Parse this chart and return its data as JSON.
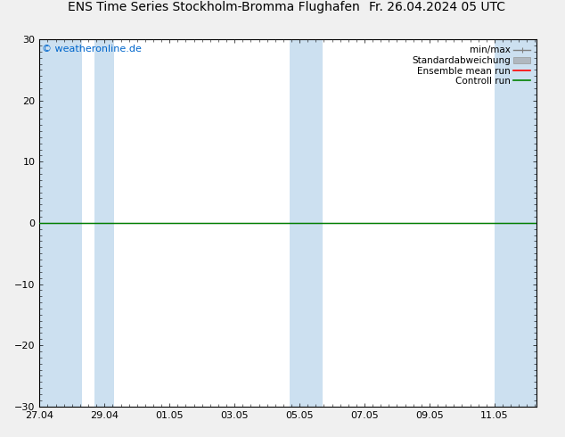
{
  "title_left": "ENS Time Series Stockholm-Bromma Flughafen",
  "title_right": "Fr. 26.04.2024 05 UTC",
  "title_fontsize": 10,
  "ylim": [
    -30,
    30
  ],
  "yticks": [
    -30,
    -20,
    -10,
    0,
    10,
    20,
    30
  ],
  "xlabel_dates": [
    "27.04",
    "29.04",
    "01.05",
    "03.05",
    "05.05",
    "07.05",
    "09.05",
    "11.05"
  ],
  "x_positions": [
    0,
    2,
    4,
    6,
    8,
    10,
    12,
    14
  ],
  "xlim": [
    0,
    15.3
  ],
  "watermark": "© weatheronline.de",
  "watermark_color": "#0066cc",
  "watermark_fontsize": 8,
  "background_color": "#f0f0f0",
  "plot_bg_color": "#ffffff",
  "shaded_bands_x": [
    [
      0.0,
      1.3
    ],
    [
      1.7,
      2.3
    ],
    [
      7.7,
      8.7
    ],
    [
      14.0,
      15.3
    ]
  ],
  "shaded_color": "#cce0f0",
  "zero_line_color": "#000000",
  "control_run_color": "#008000",
  "ensemble_mean_color": "#ff0000",
  "legend_labels": [
    "min/max",
    "Standardabweichung",
    "Ensemble mean run",
    "Controll run"
  ],
  "legend_line_colors": [
    "#808080",
    "#b0b8c0",
    "#ff0000",
    "#008000"
  ],
  "legend_fontsize": 7.5,
  "tick_fontsize": 8,
  "frame_color": "#000000"
}
